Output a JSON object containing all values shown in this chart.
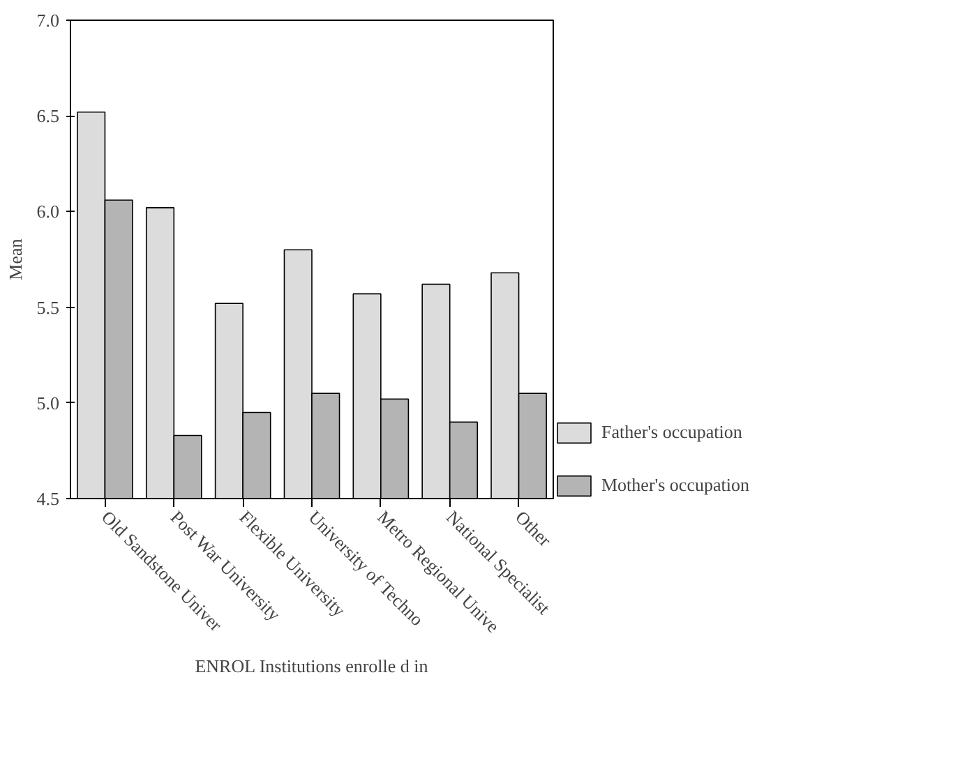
{
  "chart_data": {
    "type": "bar",
    "xlabel": "ENROL Institutions enrolle d in",
    "ylabel": "Mean",
    "categories": [
      "Old Sandstone Univer",
      "Post War University",
      "Flexible University",
      "University of Techno",
      "Metro Regional Unive",
      "National Specialist",
      "Other"
    ],
    "series": [
      {
        "name": "Father's occupation",
        "color": "#dcdcdc",
        "values": [
          6.52,
          6.02,
          5.52,
          5.8,
          5.57,
          5.62,
          5.68
        ]
      },
      {
        "name": "Mother's occupation",
        "color": "#b4b4b4",
        "values": [
          6.06,
          4.83,
          4.95,
          5.05,
          5.02,
          4.9,
          5.05
        ]
      }
    ],
    "ylim": [
      4.5,
      7.0
    ],
    "yticks": [
      {
        "value": 4.5,
        "label": "4.5"
      },
      {
        "value": 5.0,
        "label": "5.0"
      },
      {
        "value": 5.5,
        "label": "5.5"
      },
      {
        "value": 6.0,
        "label": "6.0"
      },
      {
        "value": 6.5,
        "label": "6.5"
      },
      {
        "value": 7.0,
        "label": "7.0"
      }
    ],
    "grid": false,
    "legend": "right"
  }
}
